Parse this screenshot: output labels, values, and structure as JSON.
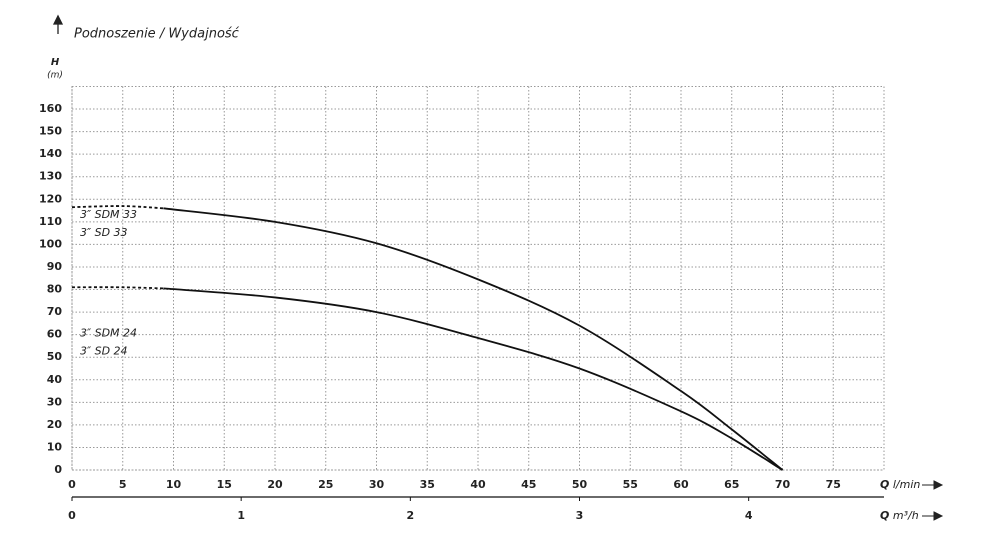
{
  "chart_data": {
    "type": "line",
    "title": "Podnoszenie / Wydajność",
    "y_label": {
      "symbol": "H",
      "unit": "(m)"
    },
    "x_label": {
      "symbol": "Q",
      "unit": "l/min"
    },
    "x2_label": {
      "symbol": "Q",
      "unit": "m³/h"
    },
    "xlim": [
      0,
      80
    ],
    "xticks": [
      0,
      5,
      10,
      15,
      20,
      25,
      30,
      35,
      40,
      45,
      50,
      55,
      60,
      65,
      70,
      75
    ],
    "x2lim": [
      0,
      4.8
    ],
    "x2ticks": [
      0,
      1,
      2,
      3,
      4
    ],
    "ylim": [
      0,
      170
    ],
    "yticks": [
      0,
      10,
      20,
      30,
      40,
      50,
      60,
      70,
      80,
      90,
      100,
      110,
      120,
      130,
      140,
      150,
      160
    ],
    "grid": true,
    "series": [
      {
        "labels": [
          "3″ SDM 33",
          "3″ SD 33"
        ],
        "color": "#111111",
        "dashed_to": 9,
        "x": [
          0,
          5,
          9,
          20,
          30,
          40,
          50,
          60,
          65,
          70
        ],
        "values": [
          116.5,
          117,
          116,
          110,
          100.5,
          84.5,
          64,
          35,
          18,
          0
        ]
      },
      {
        "labels": [
          "3″ SDM 24",
          "3″ SD 24"
        ],
        "color": "#111111",
        "dashed_to": 9,
        "x": [
          0,
          5,
          9,
          20,
          30,
          40,
          50,
          60,
          65,
          70
        ],
        "values": [
          81,
          81,
          80.5,
          76.5,
          70,
          58.5,
          45,
          26,
          14,
          0
        ]
      }
    ]
  }
}
